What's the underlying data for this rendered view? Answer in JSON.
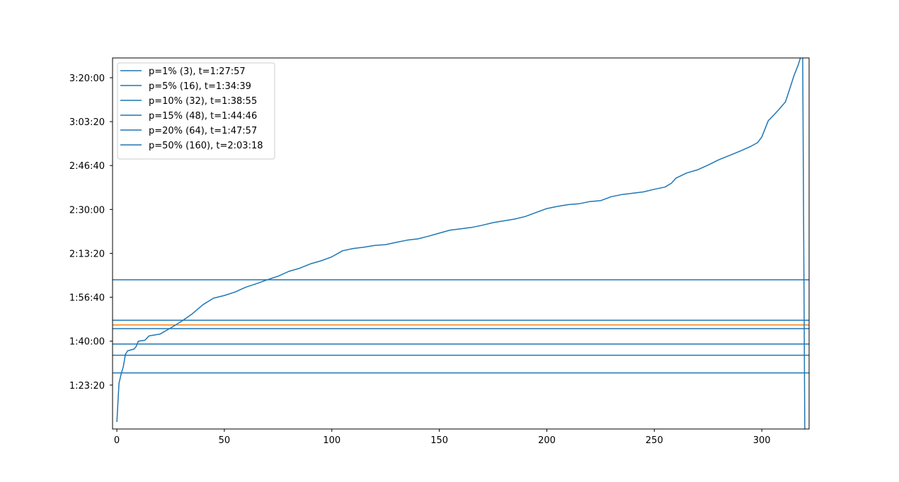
{
  "chart_data": {
    "type": "line",
    "title": "",
    "xlabel": "",
    "ylabel": "",
    "xlim": [
      -2,
      322
    ],
    "ylim": [
      4000,
      12450
    ],
    "x_ticks": [
      0,
      50,
      100,
      150,
      200,
      250,
      300
    ],
    "x_tick_labels": [
      "0",
      "50",
      "100",
      "150",
      "200",
      "250",
      "300"
    ],
    "y_ticks": [
      5000,
      6000,
      7000,
      8000,
      9000,
      10000,
      11000,
      12000
    ],
    "y_tick_labels": [
      "1:23:20",
      "1:40:00",
      "1:56:40",
      "2:13:20",
      "2:30:00",
      "2:46:40",
      "3:03:20",
      "3:20:00"
    ],
    "grid": false,
    "legend_placement": "upper-left",
    "colors": {
      "curve": "#1f77b4",
      "thresholds": "#1f77b4",
      "highlight": "#ff7f0e",
      "axes": "#000000",
      "legend_border": "#cccccc"
    },
    "curve": {
      "points": [
        [
          0,
          4160
        ],
        [
          1,
          5040
        ],
        [
          2,
          5250
        ],
        [
          3,
          5420
        ],
        [
          4,
          5700
        ],
        [
          5,
          5780
        ],
        [
          8,
          5820
        ],
        [
          9,
          5880
        ],
        [
          10,
          6000
        ],
        [
          13,
          6020
        ],
        [
          15,
          6120
        ],
        [
          20,
          6160
        ],
        [
          25,
          6300
        ],
        [
          30,
          6450
        ],
        [
          35,
          6620
        ],
        [
          40,
          6830
        ],
        [
          45,
          6980
        ],
        [
          50,
          7040
        ],
        [
          55,
          7120
        ],
        [
          60,
          7230
        ],
        [
          65,
          7310
        ],
        [
          70,
          7400
        ],
        [
          75,
          7480
        ],
        [
          80,
          7590
        ],
        [
          85,
          7660
        ],
        [
          90,
          7760
        ],
        [
          95,
          7830
        ],
        [
          100,
          7920
        ],
        [
          105,
          8060
        ],
        [
          110,
          8110
        ],
        [
          115,
          8140
        ],
        [
          120,
          8180
        ],
        [
          125,
          8200
        ],
        [
          130,
          8250
        ],
        [
          135,
          8300
        ],
        [
          140,
          8330
        ],
        [
          145,
          8390
        ],
        [
          150,
          8460
        ],
        [
          155,
          8530
        ],
        [
          160,
          8560
        ],
        [
          165,
          8590
        ],
        [
          170,
          8640
        ],
        [
          175,
          8700
        ],
        [
          180,
          8740
        ],
        [
          185,
          8780
        ],
        [
          190,
          8840
        ],
        [
          195,
          8930
        ],
        [
          200,
          9020
        ],
        [
          205,
          9070
        ],
        [
          210,
          9110
        ],
        [
          215,
          9130
        ],
        [
          220,
          9180
        ],
        [
          225,
          9200
        ],
        [
          230,
          9290
        ],
        [
          235,
          9340
        ],
        [
          240,
          9370
        ],
        [
          245,
          9400
        ],
        [
          250,
          9460
        ],
        [
          255,
          9510
        ],
        [
          258,
          9600
        ],
        [
          260,
          9710
        ],
        [
          265,
          9830
        ],
        [
          270,
          9900
        ],
        [
          275,
          10010
        ],
        [
          280,
          10130
        ],
        [
          285,
          10230
        ],
        [
          290,
          10330
        ],
        [
          295,
          10440
        ],
        [
          298,
          10520
        ],
        [
          300,
          10650
        ],
        [
          303,
          11020
        ],
        [
          305,
          11120
        ],
        [
          308,
          11280
        ],
        [
          311,
          11450
        ],
        [
          313,
          11750
        ],
        [
          315,
          12050
        ],
        [
          317,
          12300
        ],
        [
          318,
          12460
        ],
        [
          319,
          12600
        ],
        [
          320,
          4000
        ]
      ]
    },
    "series": [
      {
        "name": "p=1% (3), t=1:27:57",
        "y": 5277
      },
      {
        "name": "p=5% (16), t=1:34:39",
        "y": 5679
      },
      {
        "name": "p=10% (32), t=1:38:55",
        "y": 5935
      },
      {
        "name": "p=15% (48), t=1:44:46",
        "y": 6286
      },
      {
        "name": "p=20% (64), t=1:47:57",
        "y": 6477
      },
      {
        "name": "p=50% (160), t=2:03:18",
        "y": 7398
      }
    ],
    "extra_lines": [
      {
        "y": 6370,
        "color": "#ff7f0e"
      }
    ]
  }
}
